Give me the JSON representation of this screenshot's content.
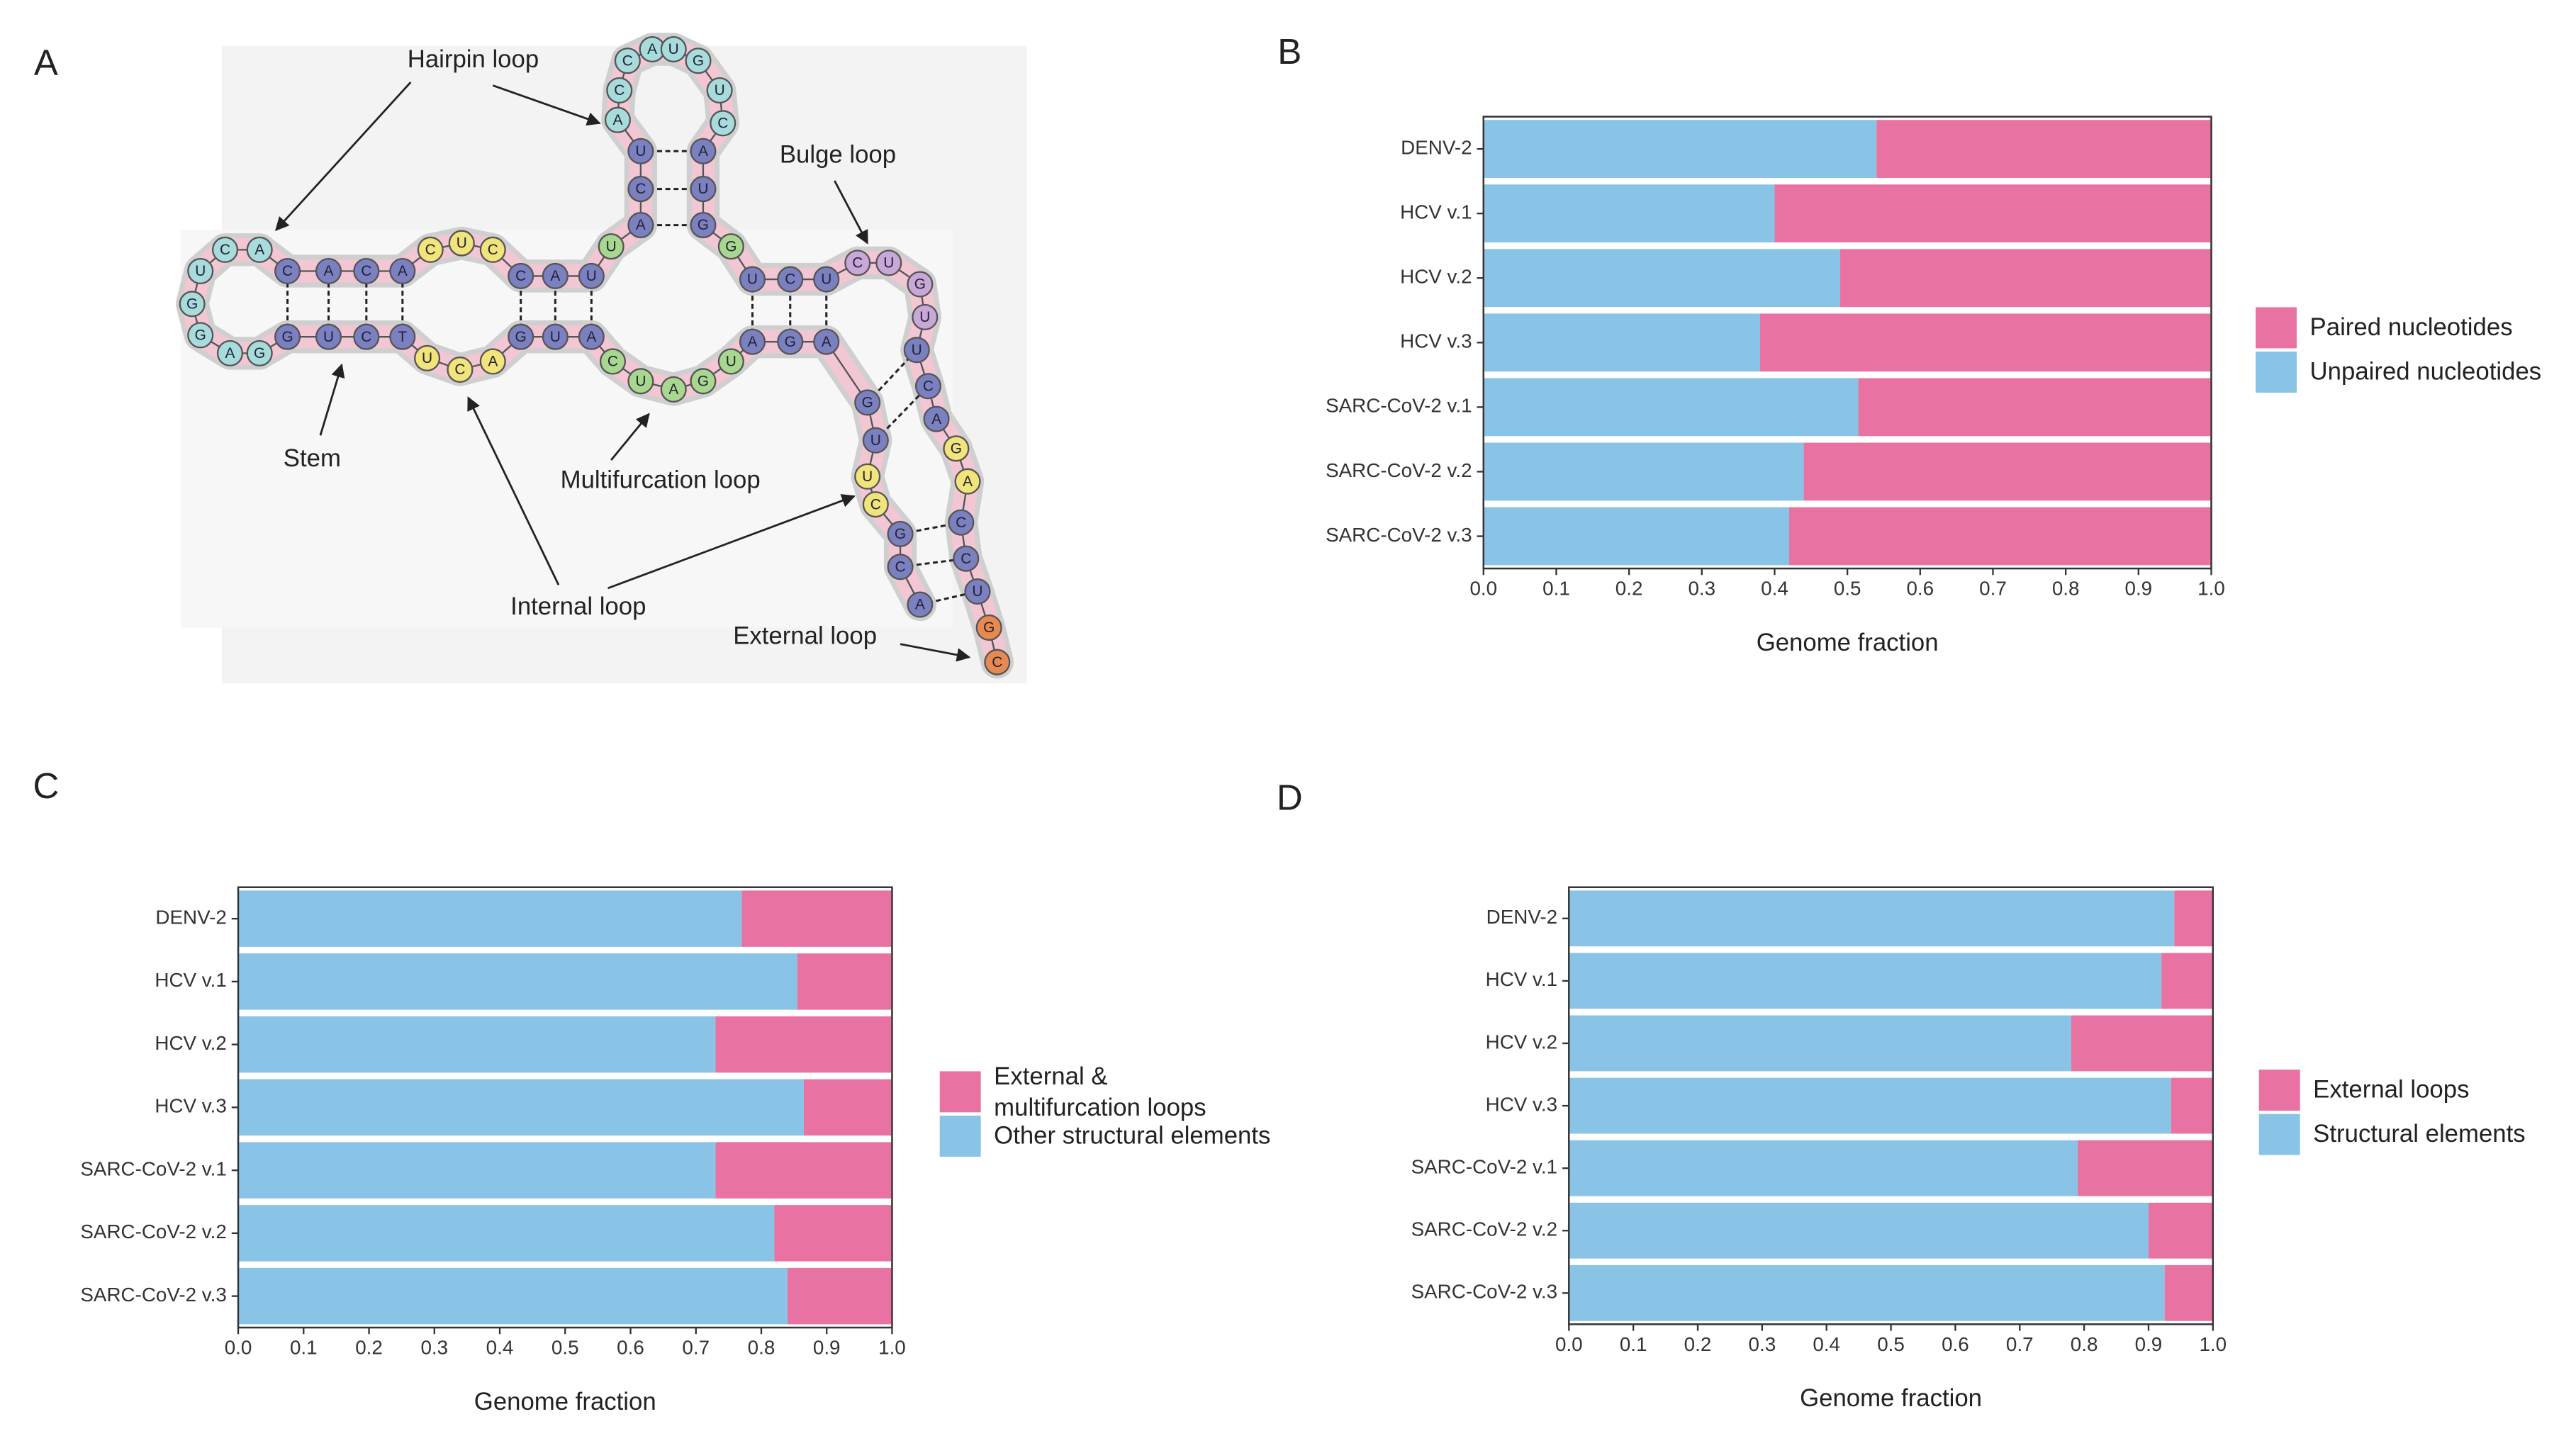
{
  "panel_labels": [
    "A",
    "B",
    "C",
    "D"
  ],
  "diagram": {
    "labels": [
      "Hairpin loop",
      "Bulge loop",
      "Stem",
      "Multifurcation loop",
      "Internal loop",
      "External loop"
    ],
    "nucleotides": [
      "A",
      "C",
      "G",
      "C",
      "U",
      "U",
      "G",
      "A",
      "G",
      "A",
      "U",
      "G",
      "A",
      "U",
      "C",
      "A",
      "U",
      "G",
      "A",
      "C",
      "U",
      "T",
      "C",
      "U",
      "G",
      "G",
      "A",
      "G",
      "G",
      "U",
      "C",
      "A",
      "C",
      "A",
      "C",
      "A",
      "C",
      "U",
      "C",
      "C",
      "A",
      "U",
      "U",
      "A",
      "C",
      "U",
      "A",
      "C",
      "C",
      "A",
      "U",
      "G",
      "U",
      "C",
      "A",
      "U",
      "G",
      "G",
      "U",
      "C",
      "U",
      "C",
      "U",
      "G",
      "U",
      "U",
      "C",
      "A",
      "G",
      "A",
      "C",
      "C",
      "U",
      "G",
      "C"
    ]
  },
  "chart_data": [
    {
      "type": "bar",
      "orientation": "horizontal",
      "stacked": true,
      "categories": [
        "DENV-2",
        "HCV v.1",
        "HCV v.2",
        "HCV v.3",
        "SARC-CoV-2 v.1",
        "SARC-CoV-2 v.2",
        "SARC-CoV-2 v.3"
      ],
      "series": [
        {
          "name": "Unpaired nucleotides",
          "color": "#89c4e6",
          "values": [
            0.54,
            0.4,
            0.49,
            0.38,
            0.515,
            0.44,
            0.42
          ]
        },
        {
          "name": "Paired nucleotides",
          "color": "#e873a3",
          "values": [
            0.46,
            0.6,
            0.51,
            0.62,
            0.485,
            0.56,
            0.58
          ]
        }
      ],
      "xlabel": "Genome fraction",
      "xlim": [
        0,
        1
      ],
      "xticks": [
        {
          "value": 0,
          "label": "0.0"
        },
        0.1,
        0.2,
        0.3,
        0.4,
        0.5,
        0.6,
        0.7,
        0.8,
        0.9,
        {
          "value": 1,
          "label": "1.0"
        }
      ],
      "legend": "right"
    },
    {
      "type": "bar",
      "orientation": "horizontal",
      "stacked": true,
      "categories": [
        "DENV-2",
        "HCV v.1",
        "HCV v.2",
        "HCV v.3",
        "SARC-CoV-2 v.1",
        "SARC-CoV-2 v.2",
        "SARC-CoV-2 v.3"
      ],
      "series": [
        {
          "name": "Other structural elements",
          "color": "#89c4e6",
          "values": [
            0.77,
            0.855,
            0.73,
            0.865,
            0.73,
            0.82,
            0.84
          ]
        },
        {
          "name": "External &\nmultifurcation loops",
          "color": "#e873a3",
          "values": [
            0.23,
            0.145,
            0.27,
            0.135,
            0.27,
            0.18,
            0.16
          ]
        }
      ],
      "xlabel": "Genome fraction",
      "xlim": [
        0,
        1
      ],
      "xticks": [
        {
          "value": 0,
          "label": "0.0"
        },
        0.1,
        0.2,
        0.3,
        0.4,
        0.5,
        0.6,
        0.7,
        0.8,
        0.9,
        {
          "value": 1,
          "label": "1.0"
        }
      ],
      "legend": "right"
    },
    {
      "type": "bar",
      "orientation": "horizontal",
      "stacked": true,
      "categories": [
        "DENV-2",
        "HCV v.1",
        "HCV v.2",
        "HCV v.3",
        "SARC-CoV-2 v.1",
        "SARC-CoV-2 v.2",
        "SARC-CoV-2 v.3"
      ],
      "series": [
        {
          "name": "Structural elements",
          "color": "#89c4e6",
          "values": [
            0.94,
            0.92,
            0.78,
            0.935,
            0.79,
            0.9,
            0.925
          ]
        },
        {
          "name": "External loops",
          "color": "#e873a3",
          "values": [
            0.06,
            0.08,
            0.22,
            0.065,
            0.21,
            0.1,
            0.075
          ]
        }
      ],
      "xlabel": "Genome fraction",
      "xlim": [
        0,
        1
      ],
      "xticks": [
        {
          "value": 0,
          "label": "0.0"
        },
        0.1,
        0.2,
        0.3,
        0.4,
        0.5,
        0.6,
        0.7,
        0.8,
        0.9,
        {
          "value": 1,
          "label": "1.0"
        }
      ],
      "legend": "right"
    }
  ]
}
